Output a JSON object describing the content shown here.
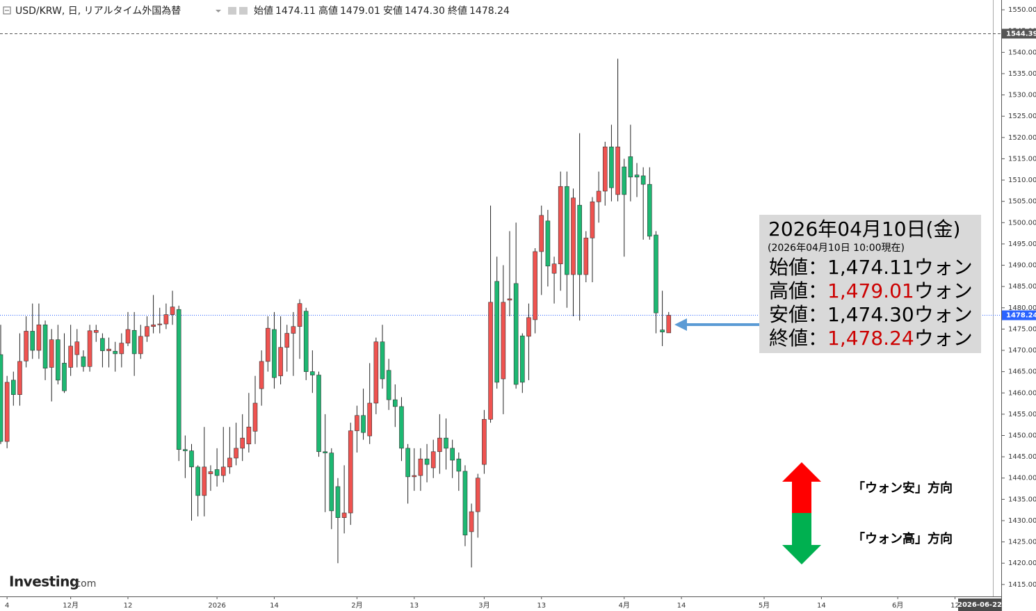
{
  "header": {
    "symbol": "USD/KRW, 日, リアルタイム外国為替",
    "open_label": "始値",
    "open": "1474.11",
    "high_label": "高値",
    "high": "1479.01",
    "low_label": "安値",
    "low": "1474.30",
    "close_label": "終値",
    "close": "1478.24"
  },
  "chart_data": {
    "type": "candlestick",
    "categories": [
      null,
      "4",
      null,
      null,
      null,
      null,
      null,
      null,
      null,
      null,
      null,
      "12月",
      null,
      null,
      null,
      null,
      null,
      null,
      null,
      null,
      "12",
      null,
      null,
      null,
      null,
      null,
      null,
      null,
      null,
      null,
      null,
      null,
      null,
      null,
      "2026",
      null,
      null,
      null,
      null,
      null,
      null,
      null,
      null,
      "14",
      null,
      null,
      null,
      null,
      null,
      null,
      null,
      null,
      null,
      null,
      null,
      null,
      "2月",
      null,
      null,
      null,
      null,
      null,
      null,
      null,
      null,
      "13",
      null,
      null,
      null,
      null,
      null,
      null,
      null,
      null,
      null,
      null,
      "3月",
      null,
      null,
      null,
      null,
      null,
      null,
      null,
      null,
      "13",
      null,
      null,
      null,
      null,
      null,
      null,
      null,
      null,
      null,
      null,
      null,
      null,
      "4月",
      null,
      null,
      null,
      null,
      null,
      null,
      null,
      null,
      "14",
      null,
      null,
      null,
      null,
      null,
      null,
      null,
      null,
      null,
      null,
      null,
      null,
      "5月",
      null,
      null,
      null,
      null,
      null,
      null,
      null,
      null,
      "14",
      null,
      null,
      null,
      null,
      null,
      null,
      null,
      null,
      null,
      null,
      null,
      "6月",
      null,
      null,
      null,
      null,
      null,
      null,
      null,
      null,
      "12",
      null,
      null,
      null,
      null,
      null,
      null
    ],
    "open": [
      1469,
      1448.6,
      1463,
      1459.6,
      1467.5,
      1474.5,
      1470,
      1476,
      1466,
      1472.5,
      1467,
      1466,
      1469,
      1468.5,
      1466.2,
      1474.2,
      1472.8,
      1469.9,
      1469.8,
      1469.2,
      1471.7,
      1474.7,
      1469.2,
      1473.3,
      1475.6,
      1476,
      1476.2,
      1478.4,
      1479.6,
      1446.7,
      1446.4,
      1442.6,
      1435.9,
      1441,
      1442,
      1440.6,
      1442.6,
      1444.7,
      1447,
      1448,
      1451,
      1461,
      1467.4,
      1474.9,
      1464,
      1470.7,
      1474,
      1475.6,
      1479.2,
      1465,
      1464.2,
      1446.2,
      1445.9,
      1438,
      1430.7,
      1431.8,
      1451.1,
      1454.7,
      1449.9,
      1457.6,
      1472,
      1465.3,
      1458.4,
      1456.8,
      1447,
      1440.3,
      1440.6,
      1444.5,
      1442.4,
      1446.2,
      1449.4,
      1447,
      1444.5,
      1441.6,
      1427.4,
      1432.1,
      1443.2,
      1453.8,
      1486.2,
      1463.3,
      1481.8,
      1485.7,
      1473.4,
      1473.3,
      1477.2,
      1493.2,
      1500.4,
      1488.1,
      1490.3,
      1508.5,
      1487.8,
      1504.1,
      1487.8,
      1496.4,
      1504.9,
      1507.4,
      1517.8,
      1506.6,
      1513.1,
      1515.5,
      1511.2,
      1511,
      1509,
      1497.1,
      1474.8,
      1474.11,
      null,
      null,
      null,
      null,
      null,
      null,
      null,
      null,
      null,
      null,
      null,
      null,
      null,
      null,
      null,
      null,
      null,
      null,
      null,
      null,
      null,
      null,
      null,
      null,
      null,
      null,
      null,
      null,
      null,
      null,
      null,
      null,
      null,
      null,
      null,
      null,
      null,
      null,
      null,
      null,
      null,
      null,
      null,
      null,
      null,
      null,
      null,
      null,
      null,
      null,
      null
    ],
    "high": [
      1476,
      1464,
      1465,
      1474,
      1478,
      1481,
      1481,
      1477,
      1475,
      1476,
      1474,
      1476,
      1475,
      1470,
      1476,
      1476,
      1474,
      1473,
      1472,
      1474,
      1479,
      1479,
      1476,
      1478,
      1483,
      1480,
      1481,
      1484,
      1480.5,
      1450,
      1448,
      1443,
      1452,
      1443,
      1447,
      1452,
      1452,
      1453,
      1455,
      1460,
      1464,
      1470,
      1478,
      1479,
      1478,
      1476,
      1479,
      1482,
      1480,
      1470,
      1465,
      1455,
      1447,
      1440,
      1443,
      1453,
      1457,
      1461,
      1467,
      1473,
      1476,
      1468,
      1462,
      1459,
      1448,
      1447,
      1447,
      1448,
      1449,
      1455,
      1454,
      1449,
      1446,
      1443,
      1434,
      1441,
      1456,
      1504,
      1492,
      1490,
      1498,
      1500,
      1474,
      1481,
      1494,
      1504,
      1503,
      1492,
      1512,
      1512,
      1508,
      1521,
      1498,
      1506,
      1512,
      1519,
      1523,
      1538.5,
      1515,
      1523,
      1514,
      1513,
      1513,
      1498,
      1484,
      1479.01,
      null,
      null,
      null,
      null,
      null,
      null,
      null,
      null,
      null,
      null,
      null,
      null,
      null,
      null,
      null,
      null,
      null,
      null,
      null,
      null,
      null,
      null,
      null,
      null,
      null,
      null,
      null,
      null,
      null,
      null,
      null,
      null,
      null,
      null,
      null,
      null,
      null,
      null,
      null,
      null,
      null,
      null,
      null,
      null,
      null,
      null,
      null,
      null,
      null,
      null,
      null
    ],
    "low": [
      1448,
      1447,
      1457,
      1457,
      1466,
      1468,
      1468,
      1463,
      1458,
      1462,
      1460,
      1464,
      1466,
      1465,
      1465,
      1472,
      1466,
      1466,
      1465,
      1466,
      1471,
      1464,
      1468,
      1472,
      1474,
      1474,
      1475,
      1476,
      1444,
      1440,
      1430,
      1431,
      1431,
      1437,
      1438,
      1439,
      1441,
      1443,
      1444,
      1446,
      1448,
      1457,
      1465,
      1461,
      1462,
      1465,
      1464,
      1468,
      1463,
      1460,
      1445,
      1432,
      1428,
      1420,
      1427,
      1429,
      1446,
      1449,
      1448,
      1455,
      1461,
      1456,
      1452,
      1444,
      1434,
      1437,
      1437,
      1439,
      1440,
      1441,
      1442,
      1440,
      1437,
      1424,
      1419,
      1426,
      1441,
      1453,
      1461,
      1455,
      1478,
      1461,
      1460,
      1463,
      1474,
      1483,
      1485,
      1481,
      1484,
      1480,
      1478,
      1477,
      1486,
      1486,
      1500,
      1504,
      1505,
      1505,
      1492,
      1505,
      1506,
      1496,
      1496,
      1474,
      1471,
      1474.3,
      null,
      null,
      null,
      null,
      null,
      null,
      null,
      null,
      null,
      null,
      null,
      null,
      null,
      null,
      null,
      null,
      null,
      null,
      null,
      null,
      null,
      null,
      null,
      null,
      null,
      null,
      null,
      null,
      null,
      null,
      null,
      null,
      null,
      null,
      null,
      null,
      null,
      null,
      null,
      null,
      null,
      null,
      null,
      null,
      null,
      null,
      null,
      null,
      null,
      null,
      null
    ],
    "close": [
      1448.6,
      1462.5,
      1459.6,
      1467.4,
      1474.5,
      1470,
      1476,
      1465.8,
      1472.5,
      1463,
      1460.5,
      1471,
      1472,
      1466.2,
      1474.6,
      1474.7,
      1469.9,
      1470.3,
      1469.2,
      1471.7,
      1474.9,
      1469.2,
      1473.3,
      1475.6,
      1476,
      1476.2,
      1478.4,
      1480.2,
      1446.7,
      1446.4,
      1442.6,
      1435.9,
      1442.6,
      1441.5,
      1440.6,
      1442.6,
      1444.7,
      1447,
      1449.4,
      1452,
      1457.6,
      1467.4,
      1475.2,
      1463.6,
      1470.7,
      1474,
      1475.6,
      1481,
      1465,
      1464.2,
      1446.2,
      1445.9,
      1432.3,
      1430.7,
      1431.8,
      1451.1,
      1454.7,
      1450.7,
      1457.6,
      1472,
      1463.3,
      1458.4,
      1456.8,
      1447,
      1440.3,
      1440.6,
      1444.5,
      1443.2,
      1446.2,
      1449.4,
      1447,
      1444.2,
      1441.6,
      1426.6,
      1432.1,
      1440,
      1453.8,
      1481.3,
      1462.5,
      1481.3,
      1482.1,
      1462,
      1462.5,
      1477.7,
      1493.2,
      1501.7,
      1489.8,
      1490.3,
      1508.5,
      1487.8,
      1505.8,
      1487.8,
      1496.4,
      1504.9,
      1507.4,
      1517.8,
      1508.2,
      1517.8,
      1506.6,
      1510.7,
      1510.7,
      1509,
      1496.8,
      1478.8,
      1474.3,
      1478.24,
      null,
      null,
      null,
      null,
      null,
      null,
      null,
      null,
      null,
      null,
      null,
      null,
      null,
      null,
      null,
      null,
      null,
      null,
      null,
      null,
      null,
      null,
      null,
      null,
      null,
      null,
      null,
      null,
      null,
      null,
      null,
      null,
      null,
      null,
      null,
      null,
      null,
      null,
      null,
      null,
      null,
      null,
      null,
      null,
      null,
      null,
      null,
      null,
      null,
      null,
      null
    ],
    "up_color": "#ef5350",
    "down_color": "#1db872",
    "ylim": [
      1412.2,
      1552.3
    ],
    "yticks": [
      {
        "value": 1415,
        "label": "1415.00"
      },
      {
        "value": 1420,
        "label": "1420.00"
      },
      {
        "value": 1425,
        "label": "1425.00"
      },
      {
        "value": 1430,
        "label": "1430.00"
      },
      {
        "value": 1435,
        "label": "1435.00"
      },
      {
        "value": 1440,
        "label": "1440.00"
      },
      {
        "value": 1445,
        "label": "1445.00"
      },
      {
        "value": 1450,
        "label": "1450.00"
      },
      {
        "value": 1455,
        "label": "1455.00"
      },
      {
        "value": 1460,
        "label": "1460.00"
      },
      {
        "value": 1465,
        "label": "1465.00"
      },
      {
        "value": 1470,
        "label": "1470.00"
      },
      {
        "value": 1475,
        "label": "1475.00"
      },
      {
        "value": 1480,
        "label": "1480.00"
      },
      {
        "value": 1485,
        "label": "1485.00"
      },
      {
        "value": 1490,
        "label": "1490.00"
      },
      {
        "value": 1495,
        "label": "1495.00"
      },
      {
        "value": 1500,
        "label": "1500.00"
      },
      {
        "value": 1505,
        "label": "1505.00"
      },
      {
        "value": 1510,
        "label": "1510.00"
      },
      {
        "value": 1515,
        "label": "1515.00"
      },
      {
        "value": 1520,
        "label": "1520.00"
      },
      {
        "value": 1525,
        "label": "1525.00"
      },
      {
        "value": 1530,
        "label": "1530.00"
      },
      {
        "value": 1535,
        "label": "1535.00"
      },
      {
        "value": 1540,
        "label": "1540.00"
      },
      {
        "value": 1545,
        "label": "1545.00"
      },
      {
        "value": 1550,
        "label": "1550.00"
      }
    ],
    "price_lines": [
      {
        "value": 1544.39,
        "label": "1544.39",
        "color": "#555555"
      },
      {
        "value": 1478.24,
        "label": "1478.24",
        "color": "#2962ff"
      }
    ],
    "crosshair_date": "2026-06-22",
    "grid": false
  },
  "annotation": {
    "date": "2026年04月10日(金)",
    "as_of": "(2026年04月10日 10:00現在)",
    "rows": [
      {
        "label": "始値：",
        "value": "1,474.11",
        "unit": "ウォン",
        "value_color": "#000000"
      },
      {
        "label": "高値：",
        "value": "1,479.01",
        "unit": "ウォン",
        "value_color": "#cc0000"
      },
      {
        "label": "安値：",
        "value": "1,474.30",
        "unit": "ウォン",
        "value_color": "#000000"
      },
      {
        "label": "終値：",
        "value": "1,478.24",
        "unit": "ウォン",
        "value_color": "#cc0000"
      }
    ]
  },
  "legend": {
    "up": "「ウォン安」方向",
    "down": "「ウォン高」方向"
  },
  "logo": {
    "brand": "Investing",
    ".com": ".com"
  }
}
